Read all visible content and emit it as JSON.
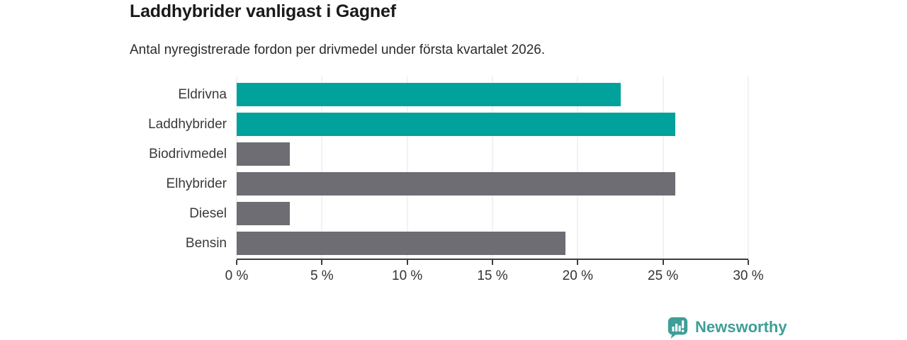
{
  "header": {
    "title": "Laddhybrider vanligast i Gagnef",
    "subtitle": "Antal nyregistrerade fordon per drivmedel under första kvartalet 2026."
  },
  "chart_data": {
    "type": "bar",
    "orientation": "horizontal",
    "title": "Laddhybrider vanligast i Gagnef",
    "subtitle": "Antal nyregistrerade fordon per drivmedel under första kvartalet 2026.",
    "categories": [
      "Eldrivna",
      "Laddhybrider",
      "Biodrivmedel",
      "Elhybrider",
      "Diesel",
      "Bensin"
    ],
    "values": [
      22.5,
      25.7,
      3.1,
      25.7,
      3.1,
      19.3
    ],
    "unit": "%",
    "highlighted": [
      true,
      true,
      false,
      false,
      false,
      false
    ],
    "highlight_color": "#00a29b",
    "default_color": "#6e6d73",
    "xlabel": "",
    "ylabel": "",
    "xlim": [
      0,
      30
    ],
    "x_ticks": [
      0,
      5,
      10,
      15,
      20,
      25,
      30
    ],
    "x_tick_labels": [
      "0 %",
      "5 %",
      "10 %",
      "15 %",
      "20 %",
      "25 %",
      "30 %"
    ],
    "grid": true,
    "legend_position": "none"
  },
  "footer": {
    "brand": "Newsworthy",
    "brand_color": "#3f9e98"
  },
  "colors": {
    "background": "#ffffff",
    "axis": "#3d3d3d",
    "gridline": "#e4e4e4",
    "text": "#2b2b2b"
  }
}
